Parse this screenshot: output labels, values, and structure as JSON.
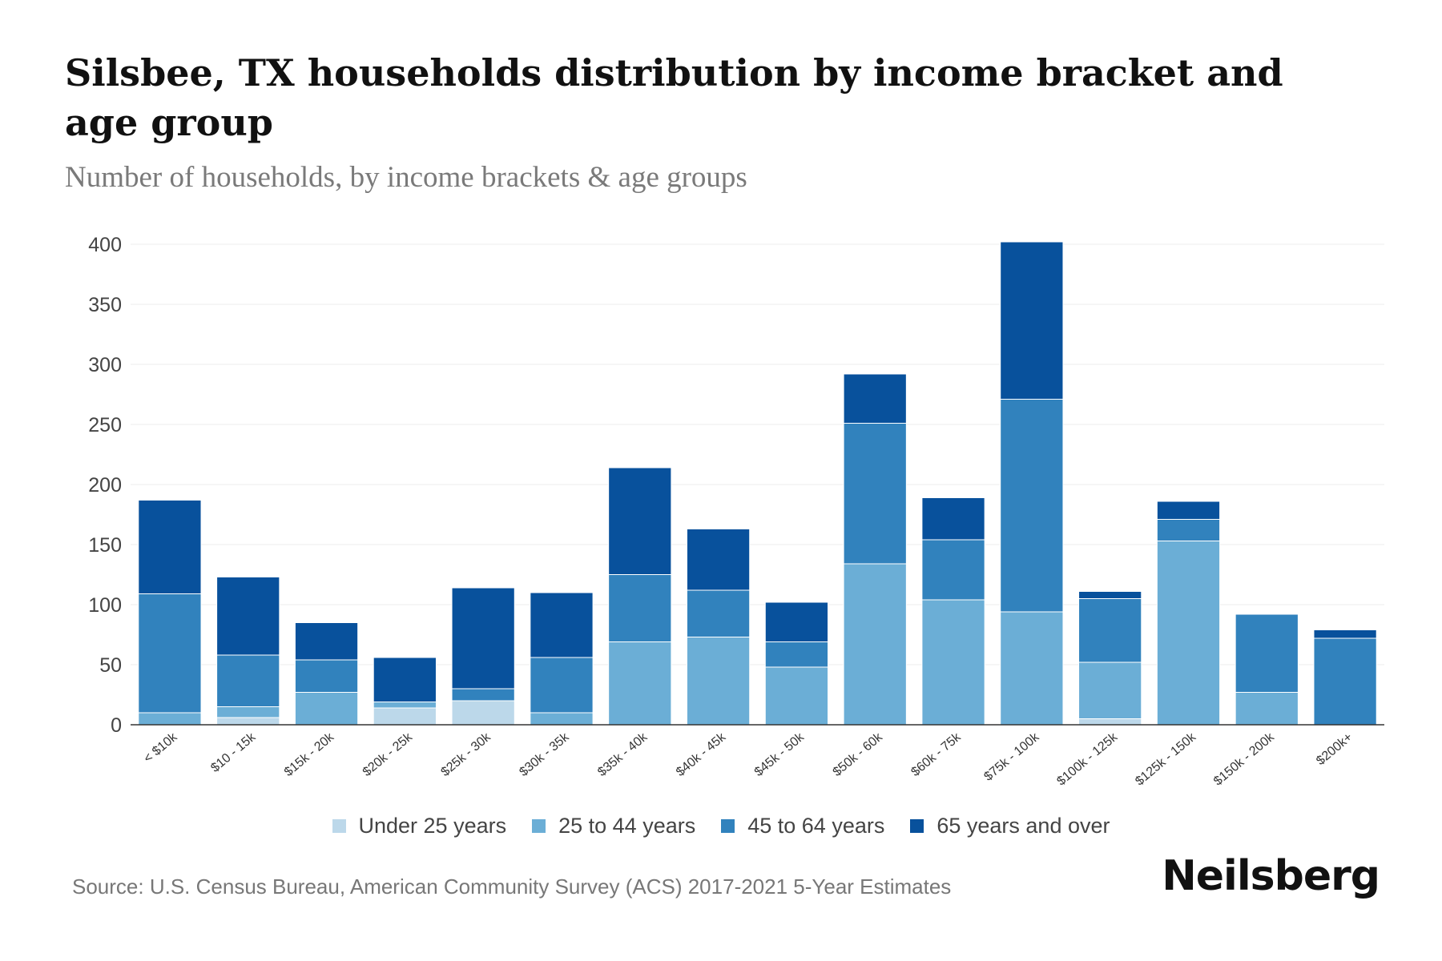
{
  "header": {
    "title": "Silsbee, TX households distribution by income bracket and age group",
    "subtitle": "Number of households, by income brackets & age groups"
  },
  "footer": {
    "source": "Source: U.S. Census Bureau, American Community Survey (ACS) 2017-2021 5-Year Estimates",
    "brand": "Neilsberg"
  },
  "chart_data": {
    "type": "bar",
    "stacked": true,
    "title": "Silsbee, TX households distribution by income bracket and age group",
    "subtitle": "Number of households, by income brackets & age groups",
    "xlabel": "",
    "ylabel": "",
    "ylim": [
      0,
      400
    ],
    "yticks": [
      0,
      50,
      100,
      150,
      200,
      250,
      300,
      350,
      400
    ],
    "grid": true,
    "legend_position": "bottom-center",
    "categories": [
      "< $10k",
      "$10 - 15k",
      "$15k - 20k",
      "$20k - 25k",
      "$25k - 30k",
      "$30k - 35k",
      "$35k - 40k",
      "$40k - 45k",
      "$45k - 50k",
      "$50k - 60k",
      "$60k - 75k",
      "$75k - 100k",
      "$100k - 125k",
      "$125k - 150k",
      "$150k - 200k",
      "$200k+"
    ],
    "series": [
      {
        "name": "Under 25 years",
        "color": "#bcd8ea",
        "values": [
          0,
          6,
          0,
          14,
          20,
          0,
          0,
          0,
          0,
          0,
          0,
          0,
          5,
          0,
          0,
          0
        ]
      },
      {
        "name": "25 to 44 years",
        "color": "#6baed6",
        "values": [
          10,
          9,
          27,
          5,
          0,
          10,
          69,
          73,
          48,
          134,
          104,
          94,
          47,
          153,
          27,
          0
        ]
      },
      {
        "name": "45 to 64 years",
        "color": "#3182bd",
        "values": [
          99,
          43,
          27,
          0,
          10,
          46,
          56,
          39,
          21,
          117,
          50,
          177,
          53,
          18,
          65,
          72
        ]
      },
      {
        "name": "65 years and over",
        "color": "#08519c",
        "values": [
          78,
          65,
          31,
          37,
          84,
          54,
          89,
          51,
          33,
          41,
          35,
          131,
          6,
          15,
          0,
          7
        ]
      }
    ]
  }
}
